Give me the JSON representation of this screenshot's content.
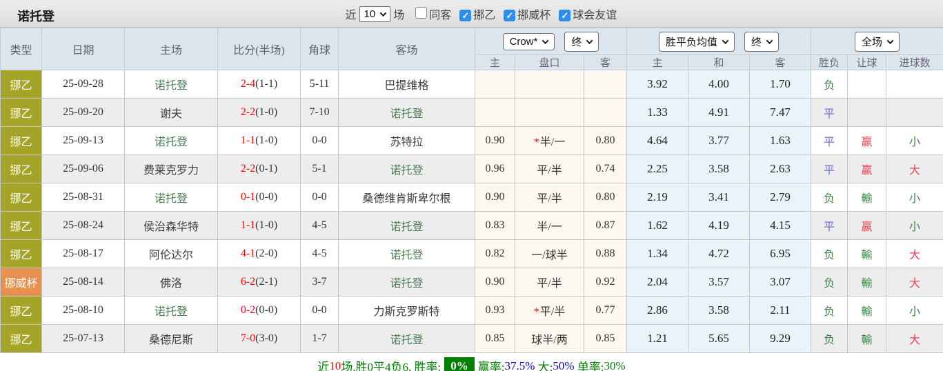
{
  "title": "诺托登",
  "topbar": {
    "recent_label": "近",
    "recent_select": "10",
    "matches_label": "场",
    "filters": [
      {
        "label": "同客",
        "checked": false
      },
      {
        "label": "挪乙",
        "checked": true
      },
      {
        "label": "挪威杯",
        "checked": true
      },
      {
        "label": "球会友谊",
        "checked": true
      }
    ]
  },
  "table": {
    "columns": [
      "类型",
      "日期",
      "主场",
      "比分(半场)",
      "角球",
      "客场"
    ],
    "selects": {
      "odds_source": "Crow*",
      "odds_source_time": "终",
      "avg_source": "胜平负均值",
      "avg_source_time": "终",
      "scope": "全场"
    },
    "sub_headers": [
      "主",
      "盘口",
      "客",
      "主",
      "和",
      "客",
      "胜负",
      "让球",
      "进球数"
    ],
    "rows": [
      {
        "type": "挪乙",
        "type_color": "olive",
        "date": "25-09-28",
        "home": "诺托登",
        "home_self": true,
        "score": "2-4",
        "half": "(1-1)",
        "corner": "5-11",
        "away": "巴提维格",
        "away_self": false,
        "ah_home": "",
        "ah_star": false,
        "ah_line": "",
        "ah_away": "",
        "odds_home": "3.92",
        "odds_draw": "4.00",
        "odds_away": "1.70",
        "result": "负",
        "result_color": "green",
        "ah_result": "",
        "ah_result_color": "",
        "goals": "",
        "goals_color": ""
      },
      {
        "type": "挪乙",
        "type_color": "olive",
        "date": "25-09-20",
        "home": "谢夫",
        "home_self": false,
        "score": "2-2",
        "half": "(1-0)",
        "corner": "7-10",
        "away": "诺托登",
        "away_self": true,
        "ah_home": "",
        "ah_star": false,
        "ah_line": "",
        "ah_away": "",
        "odds_home": "1.33",
        "odds_draw": "4.91",
        "odds_away": "7.47",
        "result": "平",
        "result_color": "blue",
        "ah_result": "",
        "ah_result_color": "",
        "goals": "",
        "goals_color": ""
      },
      {
        "type": "挪乙",
        "type_color": "olive",
        "date": "25-09-13",
        "home": "诺托登",
        "home_self": true,
        "score": "1-1",
        "half": "(1-0)",
        "corner": "0-0",
        "away": "苏特拉",
        "away_self": false,
        "ah_home": "0.90",
        "ah_star": true,
        "ah_line": "半/一",
        "ah_away": "0.80",
        "odds_home": "4.64",
        "odds_draw": "3.77",
        "odds_away": "1.63",
        "result": "平",
        "result_color": "blue",
        "ah_result": "赢",
        "ah_result_color": "red",
        "goals": "小",
        "goals_color": "green"
      },
      {
        "type": "挪乙",
        "type_color": "olive",
        "date": "25-09-06",
        "home": "费莱克罗力",
        "home_self": false,
        "score": "2-2",
        "half": "(0-1)",
        "corner": "5-1",
        "away": "诺托登",
        "away_self": true,
        "ah_home": "0.96",
        "ah_star": false,
        "ah_line": "平/半",
        "ah_away": "0.74",
        "odds_home": "2.25",
        "odds_draw": "3.58",
        "odds_away": "2.63",
        "result": "平",
        "result_color": "blue",
        "ah_result": "赢",
        "ah_result_color": "red",
        "goals": "大",
        "goals_color": "red"
      },
      {
        "type": "挪乙",
        "type_color": "olive",
        "date": "25-08-31",
        "home": "诺托登",
        "home_self": true,
        "score": "0-1",
        "half": "(0-0)",
        "corner": "0-0",
        "away": "桑德维肯斯卑尔根",
        "away_self": false,
        "ah_home": "0.90",
        "ah_star": false,
        "ah_line": "平/半",
        "ah_away": "0.80",
        "odds_home": "2.19",
        "odds_draw": "3.41",
        "odds_away": "2.79",
        "result": "负",
        "result_color": "green",
        "ah_result": "輸",
        "ah_result_color": "green",
        "goals": "小",
        "goals_color": "green"
      },
      {
        "type": "挪乙",
        "type_color": "olive",
        "date": "25-08-24",
        "home": "侯治森华特",
        "home_self": false,
        "score": "1-1",
        "half": "(1-0)",
        "corner": "4-5",
        "away": "诺托登",
        "away_self": true,
        "ah_home": "0.83",
        "ah_star": false,
        "ah_line": "半/一",
        "ah_away": "0.87",
        "odds_home": "1.62",
        "odds_draw": "4.19",
        "odds_away": "4.15",
        "result": "平",
        "result_color": "blue",
        "ah_result": "赢",
        "ah_result_color": "red",
        "goals": "小",
        "goals_color": "green"
      },
      {
        "type": "挪乙",
        "type_color": "olive",
        "date": "25-08-17",
        "home": "阿伦达尔",
        "home_self": false,
        "score": "4-1",
        "half": "(2-0)",
        "corner": "4-5",
        "away": "诺托登",
        "away_self": true,
        "ah_home": "0.82",
        "ah_star": false,
        "ah_line": "一/球半",
        "ah_away": "0.88",
        "odds_home": "1.34",
        "odds_draw": "4.72",
        "odds_away": "6.95",
        "result": "负",
        "result_color": "green",
        "ah_result": "輸",
        "ah_result_color": "green",
        "goals": "大",
        "goals_color": "red"
      },
      {
        "type": "挪威杯",
        "type_color": "orange",
        "date": "25-08-14",
        "home": "佛洛",
        "home_self": false,
        "score": "6-2",
        "half": "(2-1)",
        "corner": "3-7",
        "away": "诺托登",
        "away_self": true,
        "ah_home": "0.90",
        "ah_star": false,
        "ah_line": "平/半",
        "ah_away": "0.92",
        "odds_home": "2.04",
        "odds_draw": "3.57",
        "odds_away": "3.07",
        "result": "负",
        "result_color": "green",
        "ah_result": "輸",
        "ah_result_color": "green",
        "goals": "大",
        "goals_color": "red"
      },
      {
        "type": "挪乙",
        "type_color": "olive",
        "date": "25-08-10",
        "home": "诺托登",
        "home_self": true,
        "score": "0-2",
        "half": "(0-0)",
        "corner": "0-0",
        "away": "力斯克罗斯特",
        "away_self": false,
        "ah_home": "0.93",
        "ah_star": true,
        "ah_line": "平/半",
        "ah_away": "0.77",
        "odds_home": "2.86",
        "odds_draw": "3.58",
        "odds_away": "2.11",
        "result": "负",
        "result_color": "green",
        "ah_result": "輸",
        "ah_result_color": "green",
        "goals": "小",
        "goals_color": "green"
      },
      {
        "type": "挪乙",
        "type_color": "olive",
        "date": "25-07-13",
        "home": "桑德尼斯",
        "home_self": false,
        "score": "7-0",
        "half": "(3-0)",
        "corner": "1-7",
        "away": "诺托登",
        "away_self": true,
        "ah_home": "0.85",
        "ah_star": false,
        "ah_line": "球半/两",
        "ah_away": "0.85",
        "odds_home": "1.21",
        "odds_draw": "5.65",
        "odds_away": "9.29",
        "result": "负",
        "result_color": "green",
        "ah_result": "輸",
        "ah_result_color": "green",
        "goals": "大",
        "goals_color": "red"
      }
    ]
  },
  "summary": {
    "segments": [
      {
        "text": "近",
        "color": "green"
      },
      {
        "text": "10",
        "color": "red"
      },
      {
        "text": "场,胜0平4负6, 胜率:",
        "color": "green"
      },
      {
        "text": "0%",
        "color": "badge"
      },
      {
        "text": "赢率:",
        "color": "green"
      },
      {
        "text": "37.5%",
        "color": "blue"
      },
      {
        "text": " 大:",
        "color": "green"
      },
      {
        "text": "50%",
        "color": "blue"
      },
      {
        "text": " 单率:",
        "color": "green"
      },
      {
        "text": "30%",
        "color": "green"
      }
    ]
  },
  "colors": {
    "type_olive": "#a4a428",
    "type_orange": "#e8914e",
    "handicap_bg": "#fdf8ef",
    "odds_bg": "#e9f3f8",
    "score_red": "#ff0000",
    "self_team_green": "#4d7f56",
    "result_green": "#3e8247",
    "result_blue": "#7070dd",
    "result_red": "#ee4455",
    "summary_badge_bg": "#008000",
    "checkbox_blue": "#2e8ceb"
  }
}
